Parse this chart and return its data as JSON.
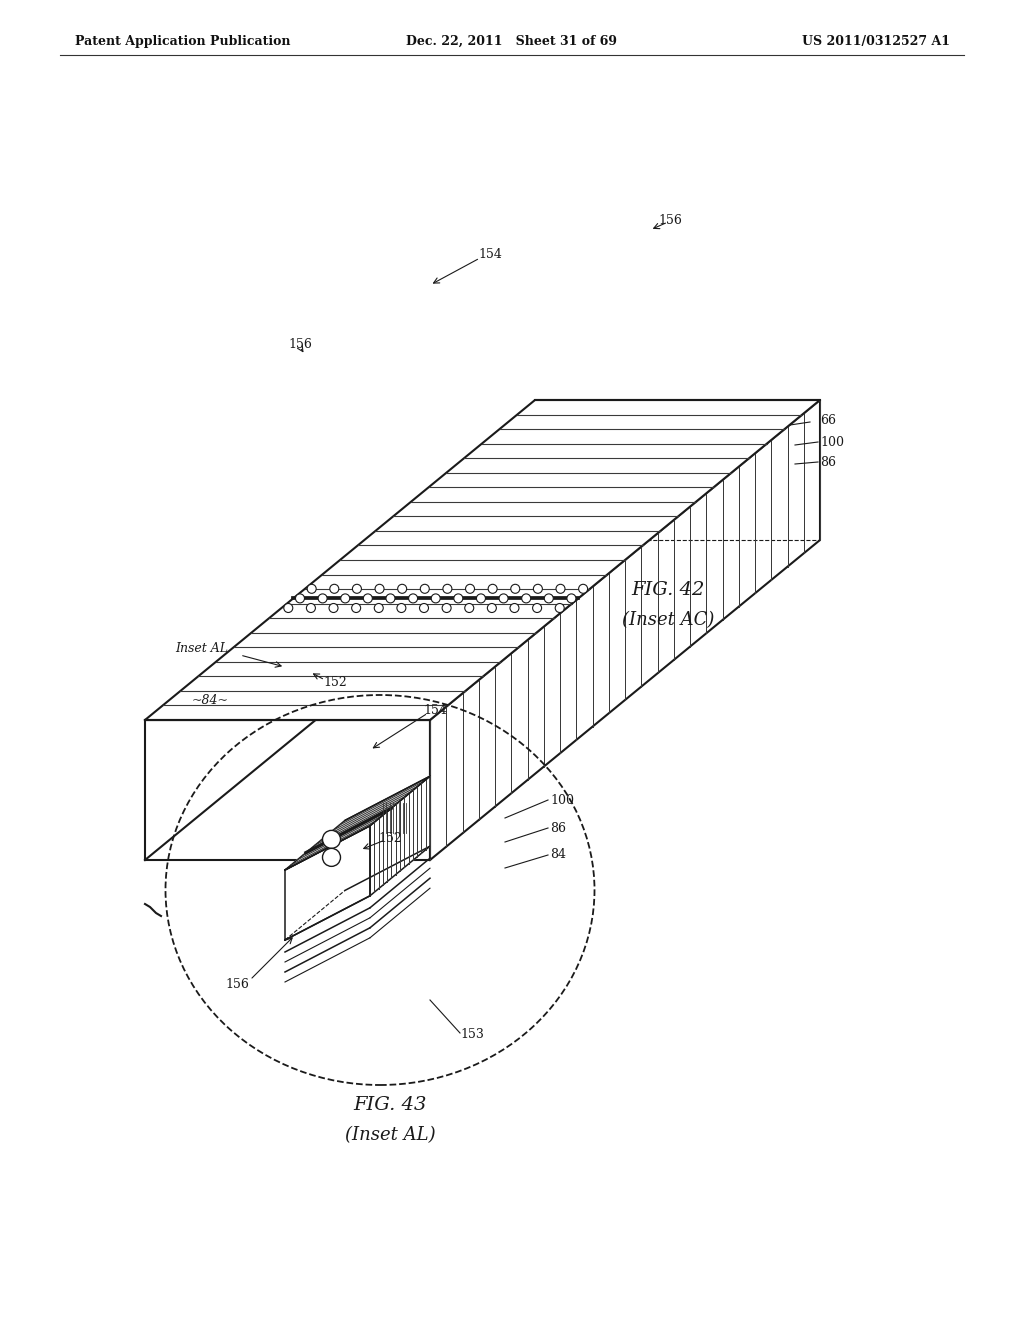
{
  "background_color": "#ffffff",
  "header": {
    "left": "Patent Application Publication",
    "center": "Dec. 22, 2011   Sheet 31 of 69",
    "right": "US 2011/0312527 A1"
  },
  "fig42_caption": "FIG. 42\n(Inset AC)",
  "fig43_caption": "FIG. 43\n(Inset AL)"
}
